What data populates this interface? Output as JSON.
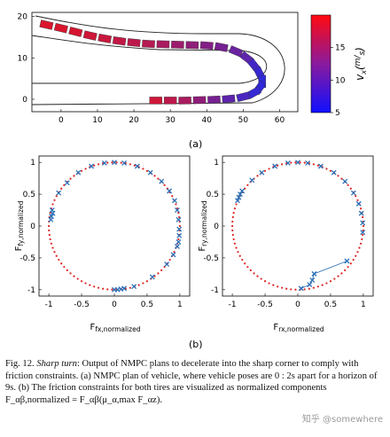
{
  "figure": {
    "panel_a_label": "(a)",
    "panel_b_label": "(b)",
    "caption": {
      "number": "Fig. 12.",
      "title": "Sharp turn",
      "text": ": Output of NMPC plans to decelerate into the sharp corner to comply with friction constraints. (a) NMPC plan of vehicle, where vehicle poses are 0 : 2s apart for a horizon of 9s. (b) The friction constraints for both tires are visualized as normalized components F_αβ,normalized = F_αβ(μ_α,max F_αz)."
    },
    "watermark": "知乎 @somewhere"
  },
  "colors": {
    "fast": "#e8141e",
    "slow": "#2a2ae0",
    "circle_dots": "#e02020",
    "markers": "#2b6fb5"
  },
  "chart_data": [
    {
      "type": "scatter",
      "title": "",
      "xlabel": "",
      "ylabel": "",
      "xlim": [
        -8,
        65
      ],
      "ylim": [
        -3,
        21
      ],
      "x_ticks": [
        "0",
        "10",
        "20",
        "30",
        "40",
        "50",
        "60"
      ],
      "y_ticks": [
        "0",
        "10",
        "20"
      ],
      "colorbar": {
        "label": "v_x (m/s)",
        "ticks": [
          "5",
          "10",
          "15"
        ],
        "range": [
          5,
          20
        ]
      },
      "series": [
        {
          "x": [
            -4,
            0,
            4,
            8,
            12,
            16,
            20,
            24,
            28,
            32,
            36,
            40,
            44,
            48,
            51,
            53,
            54.5,
            55.2,
            54.5,
            53,
            50,
            46,
            42,
            38,
            34,
            30,
            26
          ],
          "y": [
            18,
            17.2,
            16.3,
            15.4,
            14.7,
            14.1,
            13.7,
            13.4,
            13.3,
            13.2,
            13.1,
            13.0,
            12.6,
            11.6,
            10.0,
            8.2,
            6.2,
            4.3,
            2.8,
            1.6,
            0.6,
            0.1,
            -0.1,
            -0.2,
            -0.3,
            -0.3,
            -0.3
          ],
          "v": [
            19,
            18.8,
            18.5,
            18,
            17.5,
            17,
            16.5,
            16,
            15,
            14,
            13,
            12,
            11,
            10,
            9,
            7,
            6,
            5.5,
            5.5,
            6,
            7.5,
            9,
            11,
            13,
            15,
            16.5,
            18
          ]
        }
      ]
    },
    {
      "type": "scatter",
      "title": "",
      "xlabel": "F_fx,normalized",
      "ylabel": "F_fy,normalized",
      "xlim": [
        -1,
        1
      ],
      "ylim": [
        -1,
        1
      ],
      "x_ticks": [
        "-1",
        "-0.5",
        "0",
        "0.5",
        "1"
      ],
      "y_ticks": [
        "1",
        "0.5",
        "0",
        "-0.5",
        "-1"
      ],
      "series": [
        {
          "name": "",
          "x": [
            -0.97,
            -0.96,
            -0.94,
            -0.95,
            -0.85,
            -0.72,
            -0.55,
            -0.35,
            -0.15,
            0,
            0.15,
            0.35,
            0.55,
            0.72,
            0.84,
            0.92,
            0.96,
            0.98,
            0.99,
            0.99,
            0.98,
            0.96,
            0.9,
            0.8,
            0.58,
            0.3,
            0.15,
            0.1,
            0.05,
            0
          ],
          "y": [
            0.1,
            0.15,
            0.2,
            0.25,
            0.52,
            0.68,
            0.84,
            0.94,
            0.99,
            1.0,
            0.99,
            0.94,
            0.84,
            0.7,
            0.55,
            0.4,
            0.25,
            0.1,
            -0.05,
            -0.15,
            -0.25,
            -0.32,
            -0.45,
            -0.6,
            -0.8,
            -0.95,
            -0.98,
            -0.99,
            -1.0,
            -1.0
          ]
        }
      ]
    },
    {
      "type": "scatter",
      "title": "",
      "xlabel": "F_rx,normalized",
      "ylabel": "F_ry,normalized",
      "xlim": [
        -1,
        1
      ],
      "ylim": [
        -1,
        1
      ],
      "x_ticks": [
        "-1",
        "-0.5",
        "0",
        "0.5",
        "1"
      ],
      "y_ticks": [
        "1",
        "0.5",
        "0",
        "-0.5",
        "-1"
      ],
      "series": [
        {
          "name": "",
          "x": [
            -0.92,
            -0.9,
            -0.88,
            -0.85,
            -0.7,
            -0.55,
            -0.35,
            -0.15,
            0,
            0.15,
            0.35,
            0.55,
            0.72,
            0.85,
            0.93,
            0.97,
            0.99,
            0.99,
            0.75,
            0.25,
            0.22,
            0.18,
            0.05
          ],
          "y": [
            0.4,
            0.45,
            0.5,
            0.55,
            0.72,
            0.84,
            0.94,
            0.99,
            1.0,
            0.99,
            0.94,
            0.84,
            0.7,
            0.52,
            0.35,
            0.2,
            0.05,
            -0.1,
            -0.55,
            -0.75,
            -0.85,
            -0.92,
            -0.98
          ]
        }
      ]
    }
  ]
}
